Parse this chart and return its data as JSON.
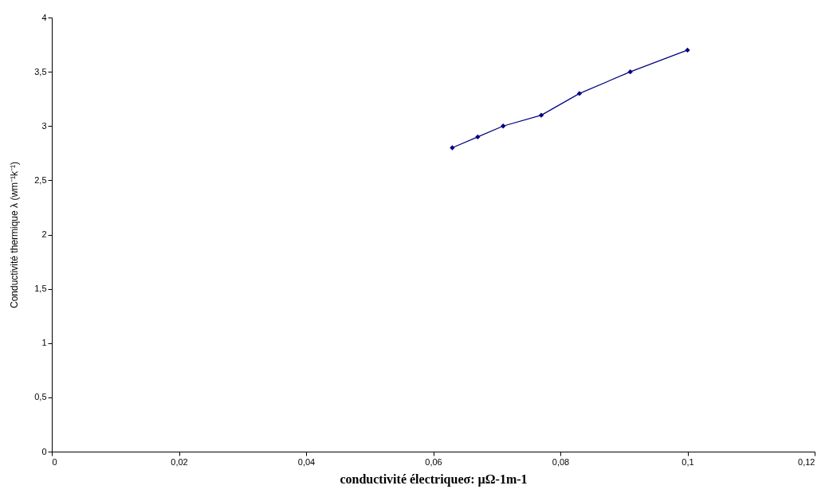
{
  "chart_data": {
    "type": "line",
    "xlabel": "conductivité électriqueσ: µΩ-1m-1",
    "ylabel": "Conductivité thermique λ (wm⁻¹k⁻¹)",
    "x": [
      0.063,
      0.067,
      0.071,
      0.077,
      0.083,
      0.091,
      0.1
    ],
    "series": [
      {
        "color": "#000080",
        "values": [
          2.8,
          2.9,
          3.0,
          3.1,
          3.3,
          3.5,
          3.7
        ]
      }
    ],
    "xlim": [
      0,
      0.12
    ],
    "xticks": [
      0,
      {
        "value": 0.02,
        "label": "0,02"
      },
      {
        "value": 0.04,
        "label": "0,04"
      },
      {
        "value": 0.06,
        "label": "0,06"
      },
      {
        "value": 0.08,
        "label": "0,08"
      },
      {
        "value": 0.1,
        "label": "0,1"
      },
      {
        "value": 0.12,
        "label": "0,12"
      }
    ],
    "ylim": [
      0,
      4
    ],
    "yticks": [
      0,
      {
        "value": 0.5,
        "label": "0,5"
      },
      1,
      {
        "value": 1.5,
        "label": "1,5"
      },
      2,
      {
        "value": 2.5,
        "label": "2,5"
      },
      3,
      {
        "value": 3.5,
        "label": "3,5"
      },
      4
    ],
    "grid": false,
    "marker": "diamond",
    "line_style": "solid"
  }
}
